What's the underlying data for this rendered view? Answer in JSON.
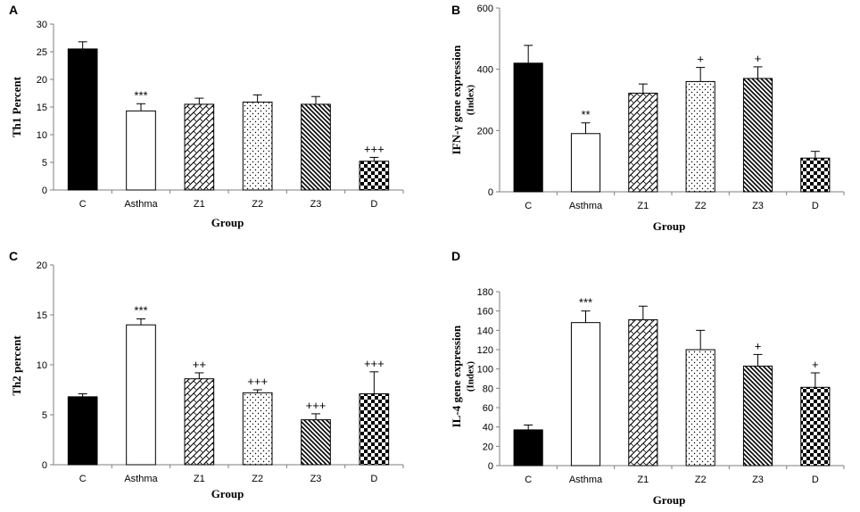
{
  "styles": {
    "C": "solid",
    "Asthma": "open",
    "Z1": "zigzag",
    "Z2": "dots",
    "Z3": "diag",
    "D": "checker"
  },
  "colors": {
    "ink": "#000000",
    "axis": "#7f7f7f",
    "paper": "#ffffff"
  },
  "chart_data": [
    {
      "type": "bar",
      "panel": "A",
      "title": "",
      "xlabel": "Group",
      "ylabel": "Th1 Percent",
      "ylabel_sub": "",
      "ylim": [
        0,
        30
      ],
      "ytick_step": 5,
      "categories": [
        "C",
        "Asthma",
        "Z1",
        "Z2",
        "Z3",
        "D"
      ],
      "values": [
        25.5,
        14.3,
        15.5,
        15.9,
        15.5,
        5.2
      ],
      "errors": [
        1.3,
        1.3,
        1.1,
        1.3,
        1.4,
        0.7
      ],
      "annotations": [
        "",
        "***",
        "",
        "",
        "",
        "+++"
      ]
    },
    {
      "type": "bar",
      "panel": "B",
      "title": "",
      "xlabel": "Group",
      "ylabel": "IFN-γ gene expression",
      "ylabel_sub": "(Index)",
      "ylim": [
        0,
        600
      ],
      "ytick_step": 200,
      "categories": [
        "C",
        "Asthma",
        "Z1",
        "Z2",
        "Z3",
        "D"
      ],
      "values": [
        420,
        190,
        322,
        360,
        370,
        110
      ],
      "errors": [
        58,
        35,
        30,
        46,
        38,
        22
      ],
      "annotations": [
        "",
        "**",
        "",
        "+",
        "+",
        ""
      ]
    },
    {
      "type": "bar",
      "panel": "C",
      "title": "",
      "xlabel": "Group",
      "ylabel": "Th2 percent",
      "ylabel_sub": "",
      "ylim": [
        0,
        20
      ],
      "ytick_step": 5,
      "categories": [
        "C",
        "Asthma",
        "Z1",
        "Z2",
        "Z3",
        "D"
      ],
      "values": [
        6.8,
        14.0,
        8.6,
        7.2,
        4.5,
        7.1
      ],
      "errors": [
        0.3,
        0.6,
        0.6,
        0.3,
        0.6,
        2.2
      ],
      "annotations": [
        "",
        "***",
        "++",
        "+++",
        "+++",
        "+++"
      ]
    },
    {
      "type": "bar",
      "panel": "D",
      "title": "",
      "xlabel": "Group",
      "ylabel": "IL-4 gene expression",
      "ylabel_sub": "(Index)",
      "ylim": [
        0,
        180
      ],
      "ytick_step": 20,
      "categories": [
        "C",
        "Asthma",
        "Z1",
        "Z2",
        "Z3",
        "D"
      ],
      "values": [
        37,
        148,
        151,
        120,
        103,
        81
      ],
      "errors": [
        5,
        12,
        14,
        20,
        12,
        15
      ],
      "annotations": [
        "",
        "***",
        "",
        "",
        "+",
        "+"
      ]
    }
  ]
}
